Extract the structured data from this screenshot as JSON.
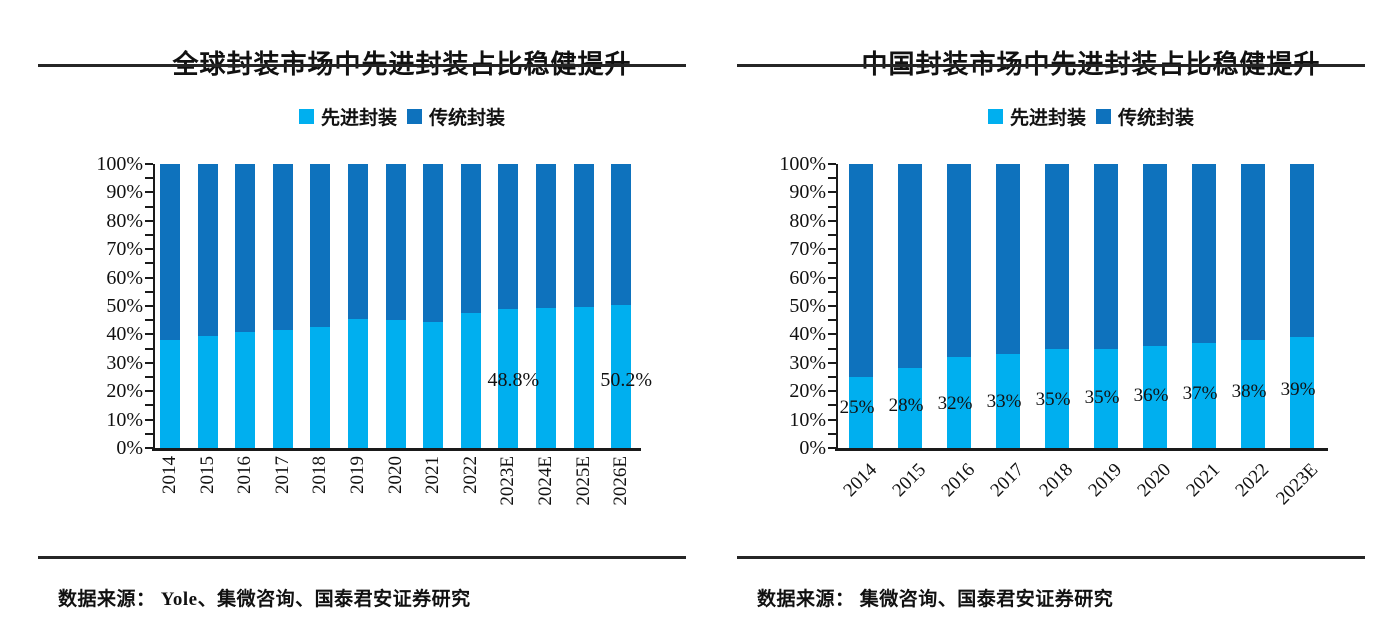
{
  "colors": {
    "advanced": "#00AFEF",
    "traditional": "#0E72BD",
    "axis": "#1A1A1A",
    "rule": "#262626",
    "text": "#111111"
  },
  "chart_data": [
    {
      "type": "bar",
      "stacked": true,
      "percent_stacked": true,
      "title": "全球封装市场中先进封装占比稳健提升",
      "categories": [
        "2014",
        "2015",
        "2016",
        "2017",
        "2018",
        "2019",
        "2020",
        "2021",
        "2022",
        "2023E",
        "2024E",
        "2025E",
        "2026E"
      ],
      "series": [
        {
          "name": "先进封装",
          "color": "#00AFEF",
          "values": [
            38,
            39.5,
            41,
            41.5,
            42.5,
            45.5,
            45,
            44.5,
            47.5,
            48.8,
            49.3,
            49.8,
            50.2
          ]
        },
        {
          "name": "传统封装",
          "color": "#0E72BD",
          "values": [
            62,
            60.5,
            59,
            58.5,
            57.5,
            54.5,
            55,
            55.5,
            52.5,
            51.2,
            50.7,
            50.2,
            49.8
          ]
        }
      ],
      "annotations": [
        {
          "category": "2023E",
          "text": "48.8%",
          "y_pct": 24
        },
        {
          "category": "2026E",
          "text": "50.2%",
          "y_pct": 24
        }
      ],
      "ylim": [
        0,
        100
      ],
      "y_ticks": [
        "0%",
        "10%",
        "20%",
        "30%",
        "40%",
        "50%",
        "60%",
        "70%",
        "80%",
        "90%",
        "100%"
      ],
      "x_label_rotation": "vertical",
      "legend_position": "top",
      "grid": false,
      "source": "数据来源： Yole、集微咨询、国泰君安证券研究"
    },
    {
      "type": "bar",
      "stacked": true,
      "percent_stacked": true,
      "title": "中国封装市场中先进封装占比稳健提升",
      "categories": [
        "2014",
        "2015",
        "2016",
        "2017",
        "2018",
        "2019",
        "2020",
        "2021",
        "2022",
        "2023E"
      ],
      "series": [
        {
          "name": "先进封装",
          "color": "#00AFEF",
          "values": [
            25,
            28,
            32,
            33,
            35,
            35,
            36,
            37,
            38,
            39
          ]
        },
        {
          "name": "传统封装",
          "color": "#0E72BD",
          "values": [
            75,
            72,
            68,
            67,
            65,
            65,
            64,
            63,
            62,
            61
          ]
        }
      ],
      "bar_labels": [
        "25%",
        "28%",
        "32%",
        "33%",
        "35%",
        "35%",
        "36%",
        "37%",
        "38%",
        "39%"
      ],
      "annotations": [],
      "ylim": [
        0,
        100
      ],
      "y_ticks": [
        "0%",
        "10%",
        "20%",
        "30%",
        "40%",
        "50%",
        "60%",
        "70%",
        "80%",
        "90%",
        "100%"
      ],
      "x_label_rotation": "diagonal",
      "legend_position": "top",
      "grid": false,
      "source": "数据来源： 集微咨询、国泰君安证券研究"
    }
  ]
}
